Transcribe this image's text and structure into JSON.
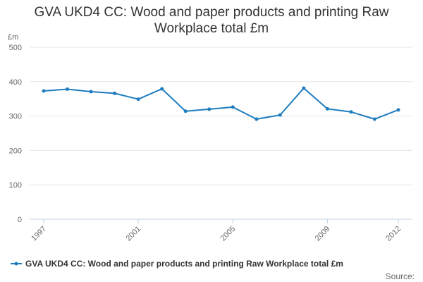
{
  "chart_data": {
    "type": "line",
    "title_lines": [
      "GVA UKD4 CC: Wood and paper products and printing Raw",
      "Workplace total £m"
    ],
    "ylabel": "£m",
    "xlabel": "",
    "ylim": [
      0,
      500
    ],
    "yticks": [
      0,
      100,
      200,
      300,
      400,
      500
    ],
    "x": [
      1997,
      1998,
      1999,
      2000,
      2001,
      2002,
      2003,
      2004,
      2005,
      2006,
      2007,
      2008,
      2009,
      2010,
      2011,
      2012
    ],
    "xticks": [
      1997,
      2001,
      2005,
      2009,
      2012
    ],
    "grid": true,
    "legend_position": "bottom",
    "series": [
      {
        "name": "GVA UKD4 CC: Wood and paper products and printing Raw Workplace total £m",
        "color": "#1f7dbf",
        "values": [
          373,
          378,
          371,
          366,
          349,
          379,
          314,
          320,
          326,
          291,
          303,
          381,
          321,
          312,
          291,
          318
        ]
      }
    ],
    "source_label": "Source:"
  }
}
